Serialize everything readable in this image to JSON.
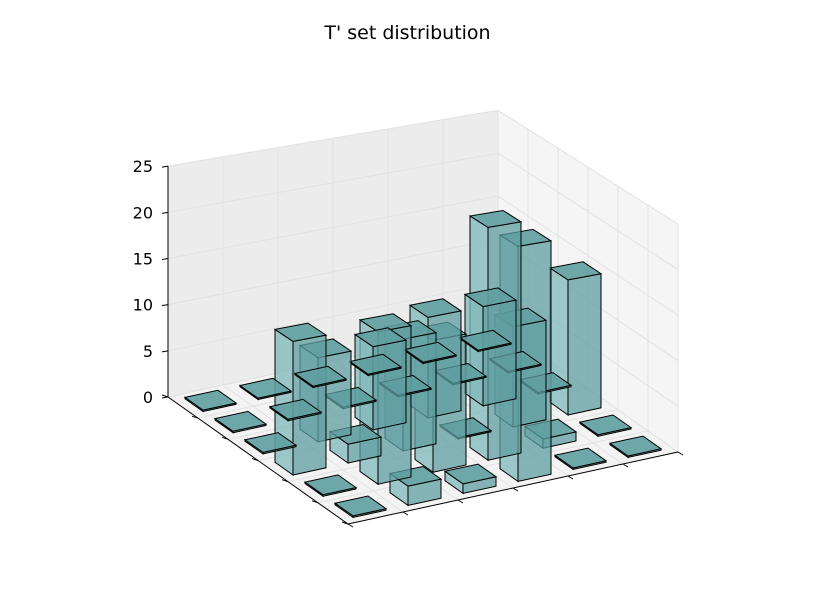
{
  "chart_data": {
    "type": "bar3d",
    "title": "T' set distribution",
    "xlabel": "",
    "ylabel": "",
    "zlabel": "",
    "zlim": [
      0,
      25
    ],
    "z_ticks": [
      "0",
      "5",
      "10",
      "15",
      "20",
      "25"
    ],
    "grid": true,
    "bar_color": "#5f9ea0",
    "bar_edge_color": "#000000",
    "grid_size": [
      6,
      6
    ],
    "bars": [
      {
        "row": 0,
        "col": 0,
        "value": 0
      },
      {
        "row": 0,
        "col": 1,
        "value": 0
      },
      {
        "row": 0,
        "col": 2,
        "value": 0
      },
      {
        "row": 0,
        "col": 3,
        "value": 0
      },
      {
        "row": 0,
        "col": 4,
        "value": 0
      },
      {
        "row": 0,
        "col": 5,
        "value": 0
      },
      {
        "row": 1,
        "col": 0,
        "value": 0
      },
      {
        "row": 1,
        "col": 1,
        "value": 0
      },
      {
        "row": 1,
        "col": 2,
        "value": 0
      },
      {
        "row": 1,
        "col": 3,
        "value": 0
      },
      {
        "row": 1,
        "col": 4,
        "value": 0
      },
      {
        "row": 1,
        "col": 5,
        "value": 0
      },
      {
        "row": 2,
        "col": 0,
        "value": 0
      },
      {
        "row": 2,
        "col": 1,
        "value": 9
      },
      {
        "row": 2,
        "col": 2,
        "value": 9
      },
      {
        "row": 2,
        "col": 3,
        "value": 11
      },
      {
        "row": 2,
        "col": 4,
        "value": 11
      },
      {
        "row": 2,
        "col": 5,
        "value": 0
      },
      {
        "row": 3,
        "col": 0,
        "value": 14
      },
      {
        "row": 3,
        "col": 1,
        "value": 2
      },
      {
        "row": 3,
        "col": 2,
        "value": 12
      },
      {
        "row": 3,
        "col": 3,
        "value": 0
      },
      {
        "row": 3,
        "col": 4,
        "value": 11
      },
      {
        "row": 3,
        "col": 5,
        "value": 15
      },
      {
        "row": 4,
        "col": 0,
        "value": 0
      },
      {
        "row": 4,
        "col": 1,
        "value": 16
      },
      {
        "row": 4,
        "col": 2,
        "value": 14
      },
      {
        "row": 4,
        "col": 3,
        "value": 25
      },
      {
        "row": 4,
        "col": 4,
        "value": 1
      },
      {
        "row": 4,
        "col": 5,
        "value": 0
      },
      {
        "row": 5,
        "col": 0,
        "value": 0
      },
      {
        "row": 5,
        "col": 1,
        "value": 2
      },
      {
        "row": 5,
        "col": 2,
        "value": 1
      },
      {
        "row": 5,
        "col": 3,
        "value": 25
      },
      {
        "row": 5,
        "col": 4,
        "value": 0
      },
      {
        "row": 5,
        "col": 5,
        "value": 0
      }
    ]
  }
}
